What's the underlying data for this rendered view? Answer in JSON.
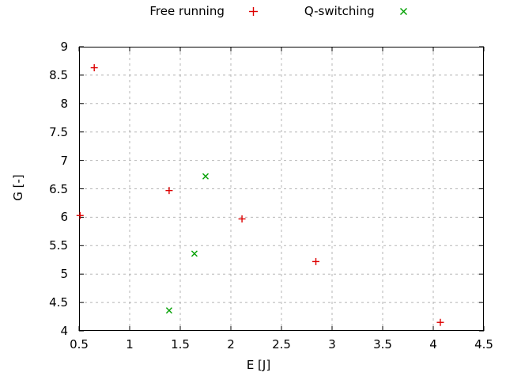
{
  "colors": {
    "free_running": "#dd0000",
    "q_switching": "#00a000",
    "grid": "#b5b5b5",
    "axis": "#000000",
    "background": "#ffffff"
  },
  "chart_data": {
    "type": "scatter",
    "title": "",
    "xlabel": "E [J]",
    "ylabel": "G [-]",
    "xlim": [
      0.5,
      4.5
    ],
    "ylim": [
      4,
      9
    ],
    "xticks": [
      0.5,
      1,
      1.5,
      2,
      2.5,
      3,
      3.5,
      4,
      4.5
    ],
    "yticks": [
      4,
      4.5,
      5,
      5.5,
      6,
      6.5,
      7,
      7.5,
      8,
      8.5,
      9
    ],
    "grid": true,
    "grid_style": "dashed",
    "legend_position": "top-center-outside",
    "series": [
      {
        "name": "Free running",
        "marker": "plus",
        "color": "#dd0000",
        "points": [
          [
            0.65,
            8.63
          ],
          [
            0.51,
            6.03
          ],
          [
            1.39,
            6.47
          ],
          [
            2.11,
            5.97
          ],
          [
            2.84,
            5.22
          ],
          [
            4.07,
            4.15
          ]
        ]
      },
      {
        "name": "Q-switching",
        "marker": "cross",
        "color": "#00a000",
        "points": [
          [
            1.75,
            6.72
          ],
          [
            1.64,
            5.36
          ],
          [
            1.39,
            4.36
          ]
        ]
      }
    ]
  }
}
